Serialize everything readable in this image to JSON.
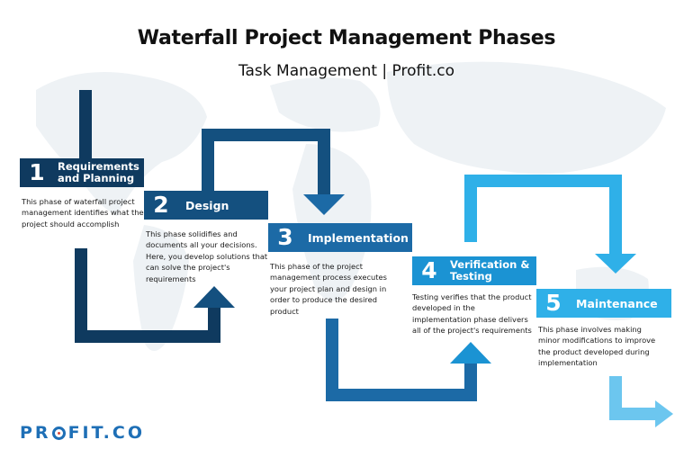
{
  "title": "Waterfall Project Management Phases",
  "subtitle": "Task Management | Profit.co",
  "phases": [
    {
      "num": "1",
      "label": "Requirements and Planning",
      "desc": "This phase of waterfall project management identifies what the project should accomplish"
    },
    {
      "num": "2",
      "label": "Design",
      "desc": "This phase solidifies and documents all your decisions. Here, you develop solutions that can solve the project's requirements"
    },
    {
      "num": "3",
      "label": "Implementation",
      "desc": "This phase of the project management process executes your project plan and design in order to produce the desired product"
    },
    {
      "num": "4",
      "label": "Verification & Testing",
      "desc": "Testing verifies that the product developed in the implementation phase delivers all of the project's requirements"
    },
    {
      "num": "5",
      "label": "Maintenance",
      "desc": "This phase involves making minor modifications to improve the product developed during implementation"
    }
  ],
  "logo": {
    "prefix": "PR",
    "suffix": "FIT.CO"
  },
  "colors": {
    "phase1": "#0f3a5f",
    "phase2": "#14507f",
    "phase3": "#1c6aa6",
    "phase4": "#1b93d3",
    "phase5": "#2fb0e8",
    "arrow_end": "#6cc6ef",
    "map": "#eef2f5"
  }
}
